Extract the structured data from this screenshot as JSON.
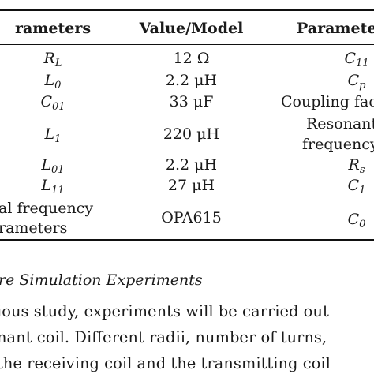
{
  "table": {
    "headers": [
      "rameters",
      "Value/Model",
      "Parameter"
    ],
    "rows": [
      {
        "param": {
          "base": "R",
          "sub": "L"
        },
        "value": "12 Ω",
        "param2": {
          "base": "C",
          "sub": "11"
        }
      },
      {
        "param": {
          "base": "L",
          "sub": "0"
        },
        "value": "2.2 μH",
        "param2": {
          "base": "C",
          "sub": "p"
        }
      },
      {
        "param": {
          "base": "C",
          "sub": "01"
        },
        "value": "33 μF",
        "param2_text": "Coupling fac"
      },
      {
        "param": {
          "base": "L",
          "sub": "1"
        },
        "value": "220 μH",
        "param2_lines": [
          "Resonant",
          "frequency"
        ]
      },
      {
        "param": {
          "base": "L",
          "sub": "01"
        },
        "value": "2.2 μH",
        "param2": {
          "base": "R",
          "sub": "s"
        }
      },
      {
        "param": {
          "base": "L",
          "sub": "11"
        },
        "value": "27 μH",
        "param2": {
          "base": "C",
          "sub": "1"
        }
      },
      {
        "param_lines": [
          "al frequency",
          "rameters"
        ],
        "value": "OPA615",
        "param2": {
          "base": "C",
          "sub": "0"
        }
      }
    ]
  },
  "section": {
    "title": "re Simulation Experiments",
    "lines": [
      "ious study, experiments will be carried out",
      "nant coil. Different radii, number of turns,",
      "the receiving coil and the transmitting coil"
    ]
  }
}
